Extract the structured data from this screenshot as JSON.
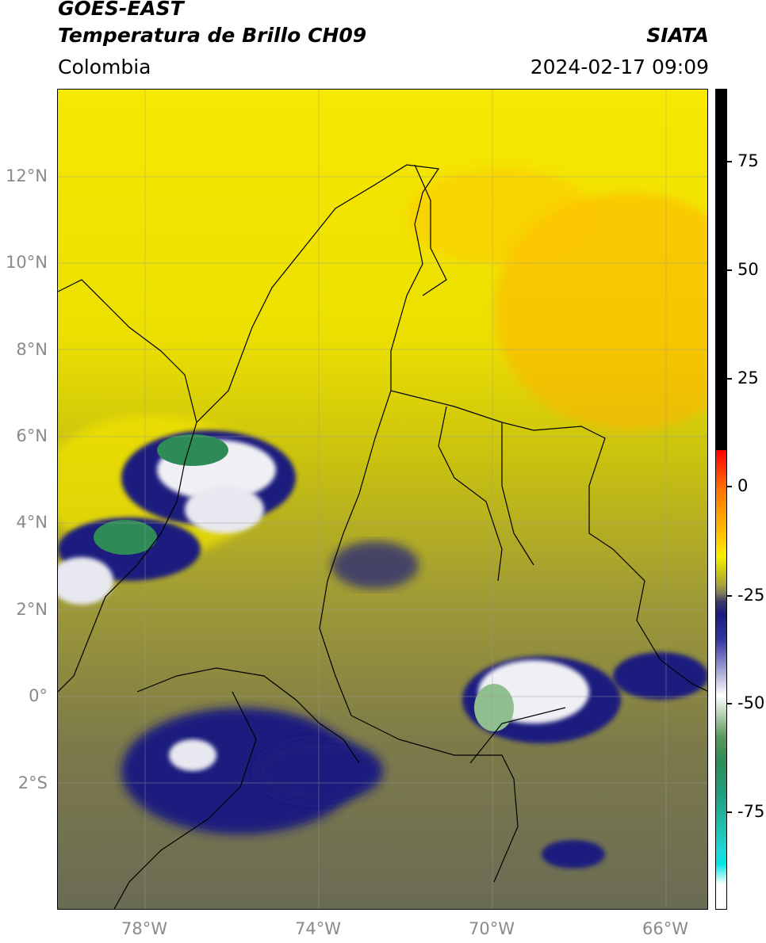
{
  "header": {
    "satellite": "GOES-EAST",
    "product": "Temperatura de Brillo CH09",
    "brand": "SIATA",
    "region": "Colombia",
    "datetime": "2024-02-17 09:09"
  },
  "axes": {
    "lat_labels": [
      "12°N",
      "10°N",
      "8°N",
      "6°N",
      "4°N",
      "2°N",
      "0°",
      "2°S"
    ],
    "lon_labels": [
      "78°W",
      "74°W",
      "70°W",
      "66°W"
    ]
  },
  "colorbar": {
    "labels": [
      "75",
      "50",
      "25",
      "0",
      "-25",
      "-50",
      "-75"
    ]
  },
  "colors": {
    "background_field": "#a9a42e",
    "warm": "#f2e000",
    "hot": "#ffb300",
    "cold": "#1c1c7e",
    "very_cold": "#f4f4f4",
    "coldest": "#2e8b57"
  }
}
